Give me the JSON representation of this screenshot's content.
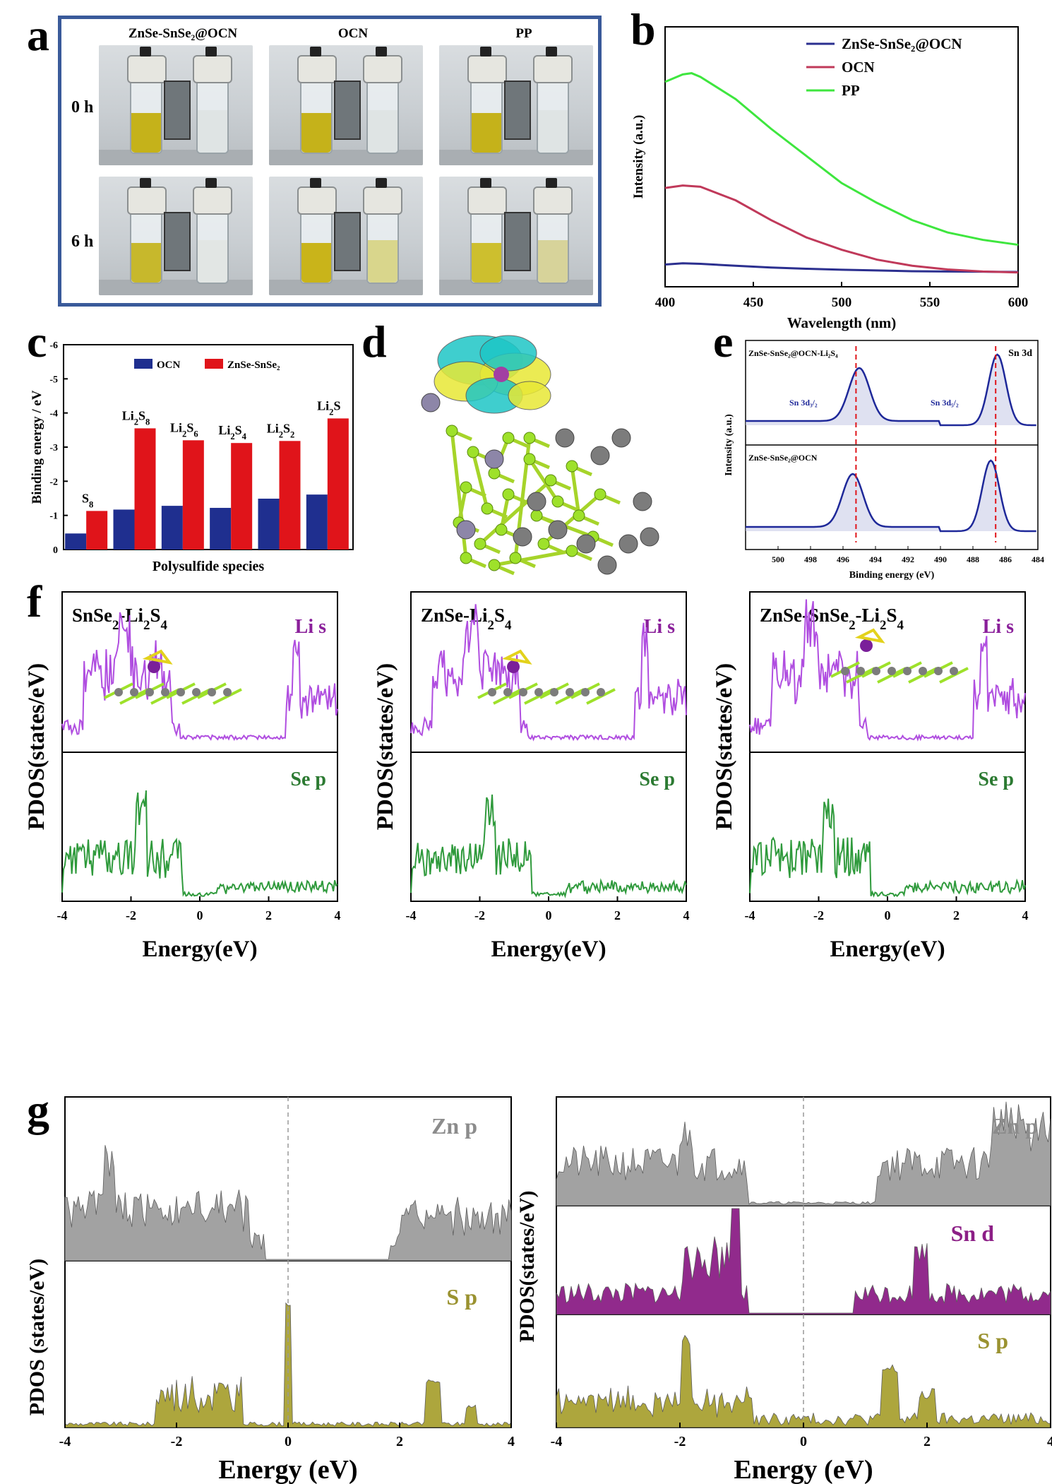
{
  "panel_letters": [
    "a",
    "b",
    "c",
    "d",
    "e",
    "f",
    "g"
  ],
  "panel_a": {
    "col_labels": [
      "ZnSe-SnSe₂@OCN",
      "OCN",
      "PP"
    ],
    "row_labels": [
      "0 h",
      "6 h"
    ],
    "frame_color": "#3a5a9a",
    "liquid": {
      "row0": [
        "#c5b21a",
        "#c5b21a",
        "#c5b21a"
      ],
      "row1": [
        "#c7b82c",
        "#c9b41a",
        "#cdbf2e"
      ],
      "right_row0": [
        "#dfe4e4",
        "#dfe4e4",
        "#dfe4e4"
      ],
      "right_row1": [
        "#e2e6e4",
        "#d9d68c",
        "#d7d39a"
      ]
    }
  },
  "panel_b": {
    "chart_data": {
      "type": "line",
      "xlabel": "Wavelength (nm)",
      "ylabel": "Intensity (a.u.)",
      "xlim": [
        400,
        600
      ],
      "xticks": [
        400,
        450,
        500,
        550,
        600
      ],
      "series": [
        {
          "name": "ZnSe-SnSe₂@OCN",
          "color": "#2b2f8f",
          "x": [
            400,
            410,
            420,
            440,
            460,
            480,
            500,
            520,
            540,
            560,
            580,
            600
          ],
          "y": [
            0.09,
            0.095,
            0.093,
            0.085,
            0.078,
            0.073,
            0.069,
            0.066,
            0.063,
            0.062,
            0.061,
            0.06
          ]
        },
        {
          "name": "OCN",
          "color": "#c0395a",
          "x": [
            400,
            410,
            420,
            440,
            460,
            480,
            500,
            520,
            540,
            560,
            580,
            600
          ],
          "y": [
            0.4,
            0.41,
            0.405,
            0.35,
            0.27,
            0.2,
            0.15,
            0.11,
            0.085,
            0.07,
            0.062,
            0.058
          ]
        },
        {
          "name": "PP",
          "color": "#3ee63e",
          "x": [
            400,
            410,
            415,
            420,
            440,
            460,
            480,
            500,
            520,
            540,
            560,
            580,
            600
          ],
          "y": [
            0.83,
            0.86,
            0.865,
            0.85,
            0.76,
            0.64,
            0.53,
            0.42,
            0.34,
            0.27,
            0.22,
            0.19,
            0.17
          ]
        }
      ]
    }
  },
  "panel_c": {
    "chart_data": {
      "type": "bar",
      "xlabel": "Polysulfide species",
      "ylabel": "Binding energy / eV",
      "ylim": [
        0,
        -6
      ],
      "yticks": [
        "0",
        "-1",
        "-2",
        "-3",
        "-4",
        "-5",
        "-6"
      ],
      "categories": [
        "S8",
        "Li2S8",
        "Li2S6",
        "Li2S4",
        "Li2S2",
        "Li2S"
      ],
      "category_labels": [
        {
          "main": "S",
          "sub": "8",
          "pre": ""
        },
        {
          "main": "Li",
          "sub": "2",
          "post": "S",
          "post_sub": "8"
        },
        {
          "main": "Li",
          "sub": "2",
          "post": "S",
          "post_sub": "6"
        },
        {
          "main": "Li",
          "sub": "2",
          "post": "S",
          "post_sub": "4"
        },
        {
          "main": "Li",
          "sub": "2",
          "post": "S",
          "post_sub": "2"
        },
        {
          "main": "Li",
          "sub": "2",
          "post": "S",
          "post_sub": ""
        }
      ],
      "series": [
        {
          "name": "OCN",
          "color": "#1f2f8f",
          "values": [
            -0.47,
            -1.17,
            -1.28,
            -1.22,
            -1.49,
            -1.61
          ]
        },
        {
          "name": "ZnSe-SnSe₂",
          "color": "#e0141a",
          "values": [
            -1.13,
            -3.55,
            -3.2,
            -3.12,
            -3.18,
            -3.84
          ]
        }
      ]
    }
  },
  "panel_e": {
    "chart_data": {
      "type": "line",
      "xlabel": "Binding energy (eV)",
      "ylabel": "Intensity (a.u.)",
      "xlim": [
        502,
        484
      ],
      "xticks": [
        500,
        498,
        496,
        494,
        492,
        490,
        488,
        486,
        484
      ],
      "peak_lines": [
        495.2,
        486.6
      ],
      "top_label": "ZnSe-SnSe₂@OCN-Li₂S₄",
      "bottom_label": "ZnSe-SnSe₂@OCN",
      "element_label": "Sn 3d",
      "peak_labels": [
        "Sn 3d₃/₂",
        "Sn 3d₅/₂"
      ],
      "series": [
        {
          "name": "ZnSe-SnSe₂@OCN-Li₂S₄",
          "peaks": [
            495.0,
            486.5
          ]
        },
        {
          "name": "ZnSe-SnSe₂@OCN",
          "peaks": [
            495.4,
            486.9
          ]
        }
      ]
    }
  },
  "panel_f": {
    "xlabel": "Energy(eV)",
    "ylabel": "PDOS(states/eV)",
    "xticks": [
      "-4",
      "-2",
      "0",
      "2",
      "4"
    ],
    "top_label": "Li s",
    "bottom_label": "Se p",
    "titles": [
      {
        "a": "SnSe",
        "a_sub": "2",
        "b": "-Li",
        "b_sub": "2",
        "c": "S",
        "c_sub": "4"
      },
      {
        "a": "ZnSe-Li",
        "a_sub": "2",
        "b": "S",
        "b_sub": "4",
        "c": "",
        "c_sub": ""
      },
      {
        "a": "ZnSe-SnSe",
        "a_sub": "2",
        "b": "-Li",
        "b_sub": "2",
        "c": "S",
        "c_sub": "4"
      }
    ],
    "li_color": "#b04ee0",
    "se_color": "#2f9a3c"
  },
  "panel_g": {
    "xlabel": "Energy (eV)",
    "ylabel_left": "PDOS (states/eV)",
    "ylabel_right": "PDOS(states/eV)",
    "xticks": [
      "-4",
      "-2",
      "0",
      "2",
      "4"
    ],
    "left_labels": [
      "Zn p",
      "S p"
    ],
    "right_labels": [
      "Zn p",
      "Sn d",
      "S p"
    ],
    "colors": {
      "zn": "#9e9e9e",
      "sn": "#8c1f86",
      "s": "#a9a233"
    }
  }
}
